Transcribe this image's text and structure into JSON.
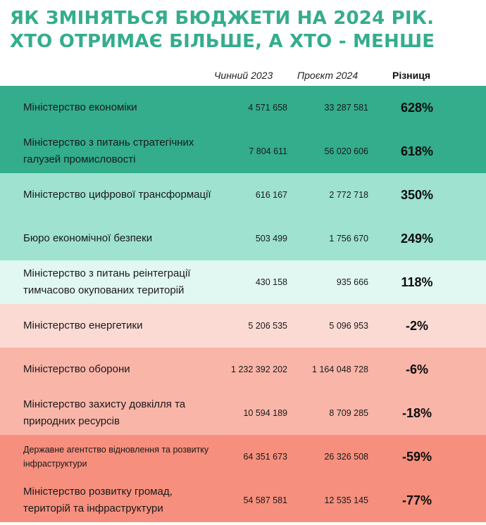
{
  "title": {
    "line1": "ЯК ЗМІНЯТЬСЯ БЮДЖЕТИ НА 2024 РІК.",
    "line2": "ХТО ОТРИМАЄ БІЛЬШЕ, А ХТО - МЕНШЕ"
  },
  "columns": {
    "current": "Чинний 2023",
    "project": "Проєкт 2024",
    "difference": "Різниця"
  },
  "colors": {
    "title": "#34ad8d",
    "band_dark_green": "#33ad8c",
    "band_mid_green": "#9ee2cf",
    "band_light_green": "#e1f7f1",
    "band_light_pink": "#fadad3",
    "band_mid_pink": "#f8b5a8",
    "band_salmon": "#f68f7d"
  },
  "rows": [
    {
      "name": "Міністерство економіки",
      "current": "4 571 658",
      "project": "33 287 581",
      "difference": "628%"
    },
    {
      "name": "Міністерство з питань стратегічних галузей промисловості",
      "current": "7 804 611",
      "project": "56 020 606",
      "difference": "618%"
    },
    {
      "name": "Міністерство цифрової трансформації",
      "current": "616 167",
      "project": "2 772 718",
      "difference": "350%"
    },
    {
      "name": "Бюро економічної безпеки",
      "current": "503 499",
      "project": "1 756 670",
      "difference": "249%"
    },
    {
      "name": "Міністерство з питань реінтеграції тимчасово окупованих територій",
      "current": "430 158",
      "project": "935 666",
      "difference": "118%"
    },
    {
      "name": "Міністерство енергетики",
      "current": "5 206 535",
      "project": "5 096 953",
      "difference": "-2%"
    },
    {
      "name": "Міністерство оборони",
      "current": "1 232 392 202",
      "project": "1 164 048 728",
      "difference": "-6%"
    },
    {
      "name": "Міністерство захисту довкілля та природних ресурсів",
      "current": "10 594 189",
      "project": "8 709 285",
      "difference": "-18%"
    },
    {
      "name": "Державне агентство відновлення та розвитку інфраструктури",
      "current": "64 351 673",
      "project": "26 326 508",
      "difference": "-59%"
    },
    {
      "name": "Міністерство розвитку громад, територій та інфраструктури",
      "current": "54 587 581",
      "project": "12 535 145",
      "difference": "-77%"
    }
  ]
}
